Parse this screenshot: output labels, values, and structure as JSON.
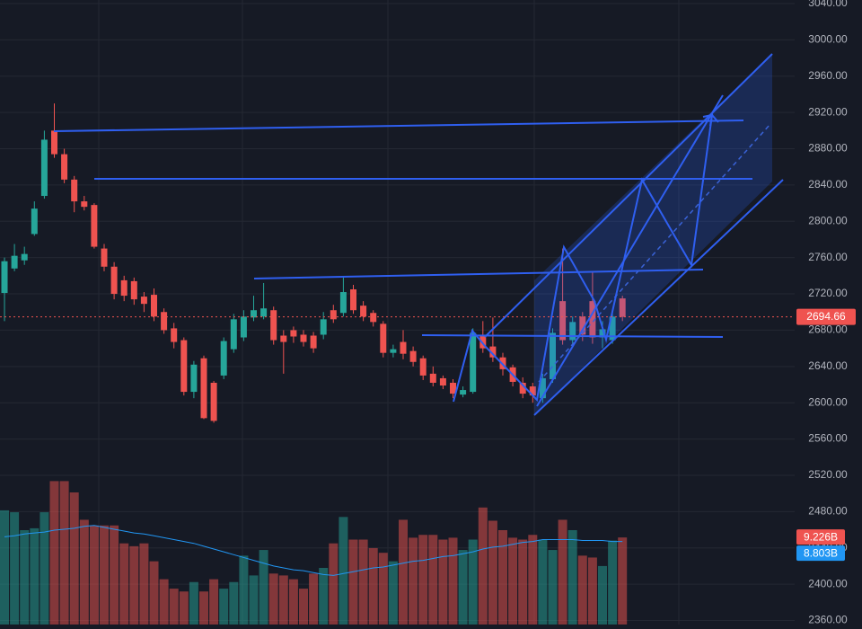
{
  "chart_data": {
    "type": "candlestick",
    "open": [
      2721,
      2748,
      2757,
      2786,
      2828,
      2900,
      2874,
      2846,
      2822,
      2818,
      2770,
      2750,
      2735,
      2734,
      2717,
      2719,
      2700,
      2682,
      2669,
      2612,
      2649,
      2622,
      2630,
      2659,
      2672,
      2694,
      2695,
      2702,
      2674,
      2680,
      2675,
      2674,
      2675,
      2702,
      2699,
      2725,
      2707,
      2699,
      2687,
      2655,
      2667,
      2657,
      2649,
      2632,
      2627,
      2622,
      2609,
      2612,
      2674,
      2662,
      2650,
      2639,
      2622,
      2618,
      2605,
      2626,
      2712,
      2669,
      2695,
      2712,
      2672,
      2669,
      2715
    ],
    "high": [
      2760,
      2775,
      2772,
      2822,
      2900,
      2930,
      2880,
      2850,
      2828,
      2820,
      2775,
      2755,
      2740,
      2738,
      2722,
      2726,
      2704,
      2688,
      2672,
      2646,
      2652,
      2624,
      2672,
      2698,
      2702,
      2718,
      2732,
      2706,
      2680,
      2684,
      2680,
      2678,
      2700,
      2708,
      2738,
      2730,
      2712,
      2702,
      2690,
      2664,
      2680,
      2662,
      2652,
      2640,
      2630,
      2626,
      2618,
      2682,
      2690,
      2694,
      2655,
      2642,
      2628,
      2622,
      2632,
      2682,
      2770,
      2695,
      2700,
      2745,
      2690,
      2700,
      2718
    ],
    "low": [
      2690,
      2745,
      2752,
      2784,
      2825,
      2870,
      2842,
      2810,
      2812,
      2770,
      2745,
      2714,
      2712,
      2708,
      2700,
      2690,
      2676,
      2660,
      2608,
      2605,
      2582,
      2578,
      2626,
      2655,
      2668,
      2690,
      2692,
      2664,
      2632,
      2666,
      2662,
      2655,
      2670,
      2688,
      2695,
      2698,
      2690,
      2684,
      2650,
      2650,
      2648,
      2640,
      2625,
      2618,
      2615,
      2605,
      2606,
      2610,
      2655,
      2645,
      2630,
      2618,
      2605,
      2600,
      2600,
      2622,
      2664,
      2664,
      2668,
      2665,
      2660,
      2665,
      2690
    ],
    "close": [
      2756,
      2762,
      2764,
      2814,
      2890,
      2874,
      2846,
      2822,
      2816,
      2772,
      2750,
      2720,
      2718,
      2714,
      2709,
      2695,
      2680,
      2667,
      2612,
      2642,
      2583,
      2580,
      2668,
      2692,
      2695,
      2702,
      2704,
      2669,
      2667,
      2673,
      2667,
      2660,
      2692,
      2692,
      2722,
      2702,
      2695,
      2689,
      2655,
      2659,
      2654,
      2645,
      2630,
      2622,
      2619,
      2610,
      2614,
      2677,
      2660,
      2650,
      2637,
      2623,
      2610,
      2608,
      2627,
      2677,
      2669,
      2689,
      2675,
      2672,
      2681,
      2695,
      2694.66
    ],
    "volume": [
      12.1,
      11.9,
      10.0,
      10.2,
      11.9,
      15.2,
      15.2,
      14.0,
      11.1,
      10.5,
      10.5,
      10.5,
      8.6,
      8.3,
      8.6,
      6.7,
      4.8,
      3.8,
      3.5,
      4.5,
      3.5,
      4.8,
      3.8,
      4.5,
      7.3,
      5.2,
      7.9,
      5.4,
      5.2,
      4.8,
      3.8,
      5.4,
      6.0,
      8.6,
      11.4,
      9.0,
      9.0,
      8.1,
      7.6,
      6.7,
      11.1,
      9.2,
      9.5,
      9.5,
      9.0,
      9.2,
      7.9,
      9.0,
      12.4,
      11.0,
      10.0,
      9.2,
      9.0,
      9.5,
      9.0,
      7.9,
      11.1,
      10.0,
      7.3,
      7.1,
      6.2,
      8.9,
      9.226
    ],
    "volume_ma": [
      9.3,
      9.4,
      9.6,
      9.7,
      9.8,
      10.0,
      10.1,
      10.2,
      10.4,
      10.5,
      10.3,
      10.1,
      9.9,
      9.7,
      9.6,
      9.4,
      9.2,
      9.0,
      8.8,
      8.6,
      8.3,
      8.0,
      7.7,
      7.4,
      7.1,
      6.8,
      6.5,
      6.2,
      6.0,
      5.8,
      5.7,
      5.5,
      5.3,
      5.2,
      5.4,
      5.6,
      5.8,
      6.0,
      6.1,
      6.3,
      6.5,
      6.7,
      6.8,
      7.0,
      7.2,
      7.3,
      7.5,
      7.7,
      8.0,
      8.2,
      8.3,
      8.5,
      8.7,
      8.8,
      9.0,
      9.0,
      9.0,
      9.0,
      8.9,
      8.9,
      8.9,
      8.8,
      8.803
    ],
    "volume_label": "9.226B",
    "volume_ma_label": "8.803B",
    "last_price": 2694.66,
    "up_color": "#26a69a",
    "down_color": "#ef5350",
    "ma_color": "#2196f3",
    "ylim": [
      2355.5,
      3044
    ],
    "yticks": [
      {
        "value": 2360,
        "label": "2360.00"
      },
      {
        "value": 2400,
        "label": "2400.00"
      },
      {
        "value": 2440,
        "label": "2440.00"
      },
      {
        "value": 2480,
        "label": "2480.00"
      },
      {
        "value": 2520,
        "label": "2520.00"
      },
      {
        "value": 2560,
        "label": "2560.00"
      },
      {
        "value": 2600,
        "label": "2600.00"
      },
      {
        "value": 2640,
        "label": "2640.00"
      },
      {
        "value": 2680,
        "label": "2680.00"
      },
      {
        "value": 2720,
        "label": "2720.00"
      },
      {
        "value": 2760,
        "label": "2760.00"
      },
      {
        "value": 2800,
        "label": "2800.00"
      },
      {
        "value": 2840,
        "label": "2840.00"
      },
      {
        "value": 2880,
        "label": "2880.00"
      },
      {
        "value": 2920,
        "label": "2920.00"
      },
      {
        "value": 2960,
        "label": "2960.00"
      },
      {
        "value": 3000,
        "label": "3000.00"
      },
      {
        "value": 3040,
        "label": "3040.00"
      }
    ],
    "grid": true
  }
}
